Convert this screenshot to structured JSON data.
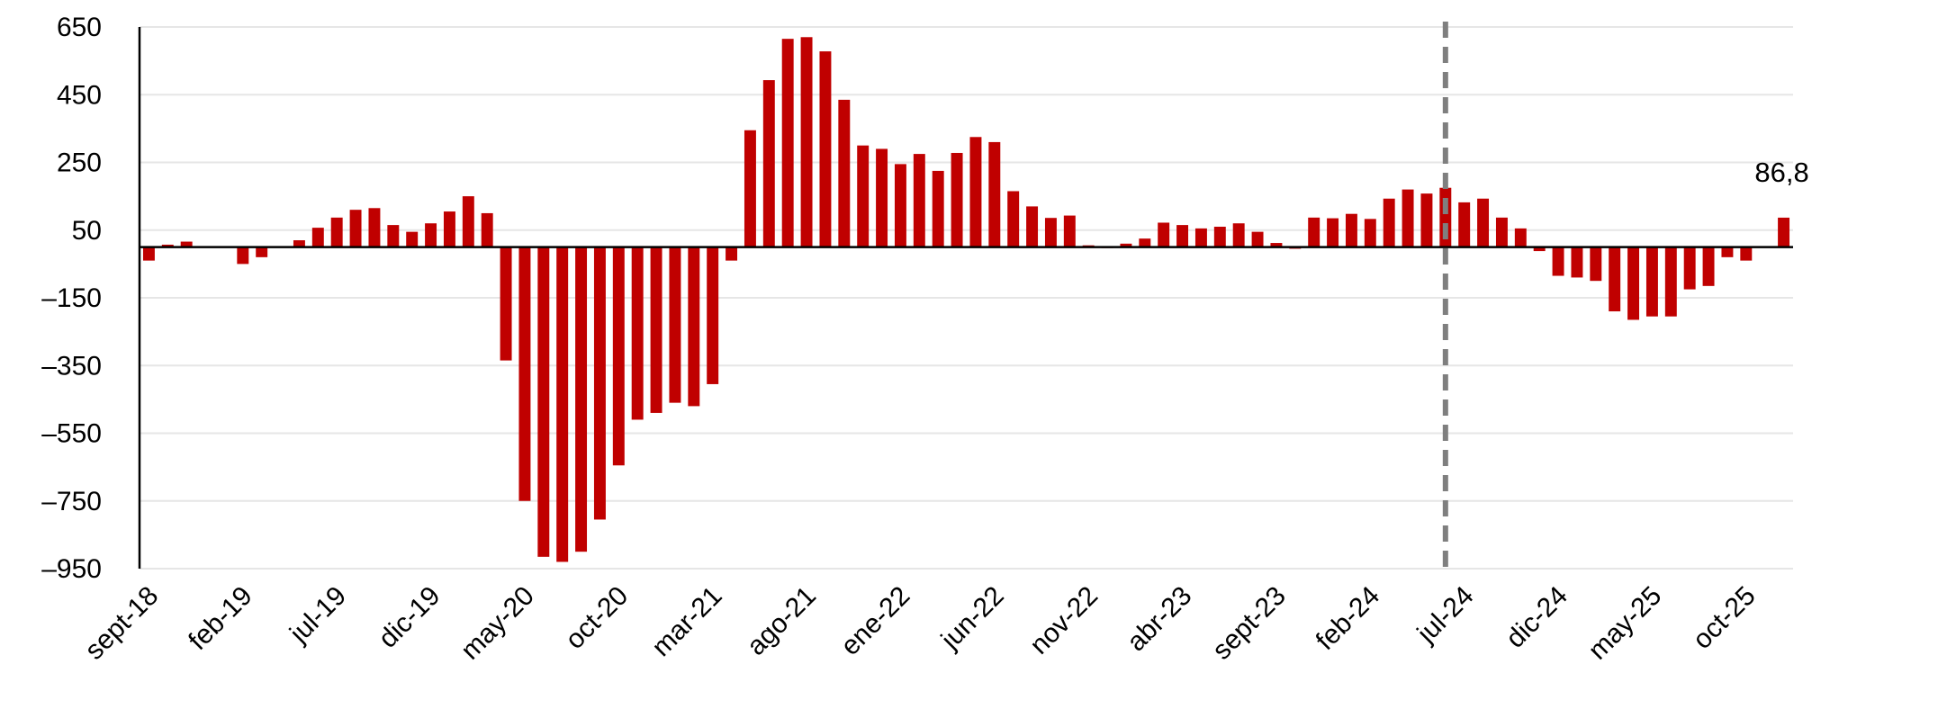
{
  "chart_data": {
    "type": "bar",
    "title": "",
    "xlabel": "",
    "ylabel": "",
    "ylim": [
      -950,
      650
    ],
    "yticks": [
      650,
      450,
      250,
      50,
      -150,
      -350,
      -550,
      -750,
      -950
    ],
    "ytick_labels": [
      "650",
      "450",
      "250",
      "50",
      "–150",
      "–350",
      "–550",
      "–750",
      "–950"
    ],
    "grid": "horizontal",
    "bar_color": "#c00000",
    "grid_color": "#e6e6e6",
    "vline_color": "#7f7f7f",
    "x": [
      "sept-18",
      "oct-18",
      "nov-18",
      "dic-18",
      "ene-19",
      "feb-19",
      "mar-19",
      "abr-19",
      "may-19",
      "jun-19",
      "jul-19",
      "ago-19",
      "sept-19",
      "oct-19",
      "nov-19",
      "dic-19",
      "ene-20",
      "feb-20",
      "mar-20",
      "abr-20",
      "may-20",
      "jun-20",
      "jul-20",
      "ago-20",
      "sept-20",
      "oct-20",
      "nov-20",
      "dic-20",
      "ene-21",
      "feb-21",
      "mar-21",
      "abr-21",
      "may-21",
      "jun-21",
      "jul-21",
      "ago-21",
      "sept-21",
      "oct-21",
      "nov-21",
      "dic-21",
      "ene-22",
      "feb-22",
      "mar-22",
      "abr-22",
      "may-22",
      "jun-22",
      "jul-22",
      "ago-22",
      "sept-22",
      "oct-22",
      "nov-22",
      "dic-22",
      "ene-23",
      "feb-23",
      "mar-23",
      "abr-23",
      "may-23",
      "jun-23",
      "jul-23",
      "ago-23",
      "sept-23",
      "oct-23",
      "nov-23",
      "dic-23",
      "ene-24",
      "feb-24",
      "mar-24",
      "abr-24",
      "may-24",
      "jun-24",
      "jul-24",
      "ago-24",
      "sept-24",
      "oct-24",
      "nov-24",
      "dic-24",
      "ene-25",
      "feb-25",
      "mar-25",
      "abr-25",
      "may-25",
      "jun-25",
      "jul-25",
      "ago-25",
      "sept-25",
      "oct-25",
      "nov-25",
      "dic-25"
    ],
    "xtick_labels": [
      "sept-18",
      "feb-19",
      "jul-19",
      "dic-19",
      "may-20",
      "oct-20",
      "mar-21",
      "ago-21",
      "ene-22",
      "jun-22",
      "nov-22",
      "abr-23",
      "sept-23",
      "feb-24",
      "jul-24",
      "dic-24",
      "may-25",
      "oct-25"
    ],
    "xtick_every": 5,
    "values": [
      -40,
      7,
      16,
      null,
      null,
      -50,
      -30,
      null,
      20,
      57,
      87,
      110,
      115,
      65,
      45,
      70,
      105,
      150,
      100,
      -335,
      -750,
      -915,
      -930,
      -900,
      -805,
      -645,
      -510,
      -490,
      -460,
      -470,
      -405,
      -40,
      345,
      493,
      615,
      620,
      578,
      435,
      300,
      290,
      245,
      275,
      225,
      278,
      325,
      310,
      165,
      120,
      86,
      93,
      5,
      -3,
      10,
      25,
      72,
      65,
      55,
      60,
      70,
      45,
      12,
      -5,
      87,
      85,
      98,
      83,
      143,
      170,
      158,
      175,
      132,
      143,
      87,
      55,
      -12,
      -85,
      -90,
      -100,
      -190,
      -215,
      -205,
      -205,
      -125,
      -115,
      -30,
      -40,
      null,
      86.8
    ],
    "vline_at": "jun-24",
    "annotations": [
      {
        "x": "dic-25",
        "text": "86,8"
      }
    ]
  }
}
